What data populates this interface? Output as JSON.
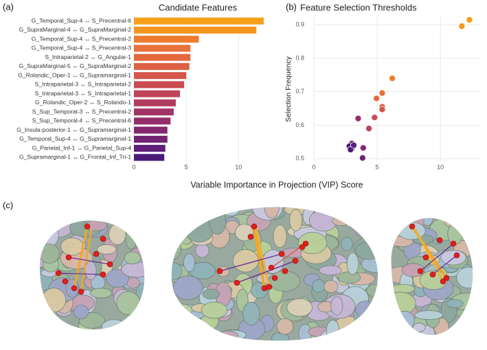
{
  "panels": [
    "(a)",
    "(b)",
    "(c)"
  ],
  "shared_x_label": "Variable Importance in Projection (VIP) Score",
  "chart_data": [
    {
      "type": "bar",
      "title": "Candidate Features",
      "categories": [
        "G_Temporal_Sup-4 ↔ S_Precentral-6",
        "G_SupraMarginal-4 ↔ G_SupraMarginal-2",
        "G_Temporal_Sup-4 ↔ S_Precentral-2",
        "G_Temporal_Sup-4 ↔ S_Precentral-3",
        "S_Intraparietal-2 ↔ G_Angular-1",
        "G_SupraMarginal-5 ↔ G_SupraMarginal-2",
        "G_Rolandic_Oper-1 ↔ G_Supramarginal-1",
        "S_Intraparietal-3 ↔ S_Intraparietal-2",
        "S_Intraparietal-3 ↔ S_Intraparietal-1",
        "G_Rolandic_Oper-2 ↔ S_Rolando-1",
        "S_Sup_Temporal-3 ↔ S_Precentral-2",
        "S_Sup_Temporal-4 ↔ S_Precentral-6",
        "G_Insula-posterior-1 ↔ G_Supramarginal-1",
        "G_Temporal_Sup-4 ↔ G_Supramarginal-1",
        "G_Parietal_Inf-1 ↔ G_Parietal_Sup-4",
        "G_Supramarginal-1 ↔ G_Frontal_Inf_Tri-1"
      ],
      "values": [
        12.4,
        11.7,
        6.2,
        5.4,
        5.4,
        5.3,
        5.0,
        4.8,
        4.4,
        4.0,
        3.8,
        3.5,
        3.2,
        3.2,
        3.0,
        2.9
      ],
      "colors": [
        "#f6a01a",
        "#f4961e",
        "#ee7c2e",
        "#e9713a",
        "#e46a3e",
        "#dd6044",
        "#d4564b",
        "#c94c52",
        "#be4459",
        "#b13c60",
        "#a33466",
        "#942e6b",
        "#842870",
        "#722374",
        "#5f1f78",
        "#4b1b7a"
      ],
      "xlim": [
        0,
        12.8
      ],
      "xticks": [
        0,
        5,
        10
      ],
      "grid": true
    },
    {
      "type": "scatter",
      "title": "Feature Selection Thresholds",
      "y_label": "Selection Frequency",
      "x": [
        12.3,
        11.7,
        6.2,
        5.4,
        5.4,
        5.4,
        4.95,
        4.8,
        4.35,
        3.5,
        3.9,
        3.85,
        3.0,
        3.0,
        2.8,
        2.9,
        3.15
      ],
      "values": [
        0.915,
        0.896,
        0.74,
        0.696,
        0.655,
        0.647,
        0.68,
        0.623,
        0.59,
        0.62,
        0.532,
        0.502,
        0.545,
        0.53,
        0.537,
        0.527,
        0.54
      ],
      "colors": [
        "#f6a01a",
        "#f4961e",
        "#ee7c2e",
        "#e9713a",
        "#dd6044",
        "#d4564b",
        "#e46a3e",
        "#c94c52",
        "#be4459",
        "#942e6b",
        "#842870",
        "#722374",
        "#5f1f78",
        "#5f1f78",
        "#4b1b7a",
        "#4b1b7a",
        "#5a2178"
      ],
      "xlim": [
        0,
        13.2
      ],
      "ylim": [
        0.49,
        0.925
      ],
      "xticks": [
        0,
        5,
        10
      ],
      "yticks": [
        0.5,
        0.6,
        0.7,
        0.8,
        0.9
      ],
      "grid": true
    }
  ]
}
